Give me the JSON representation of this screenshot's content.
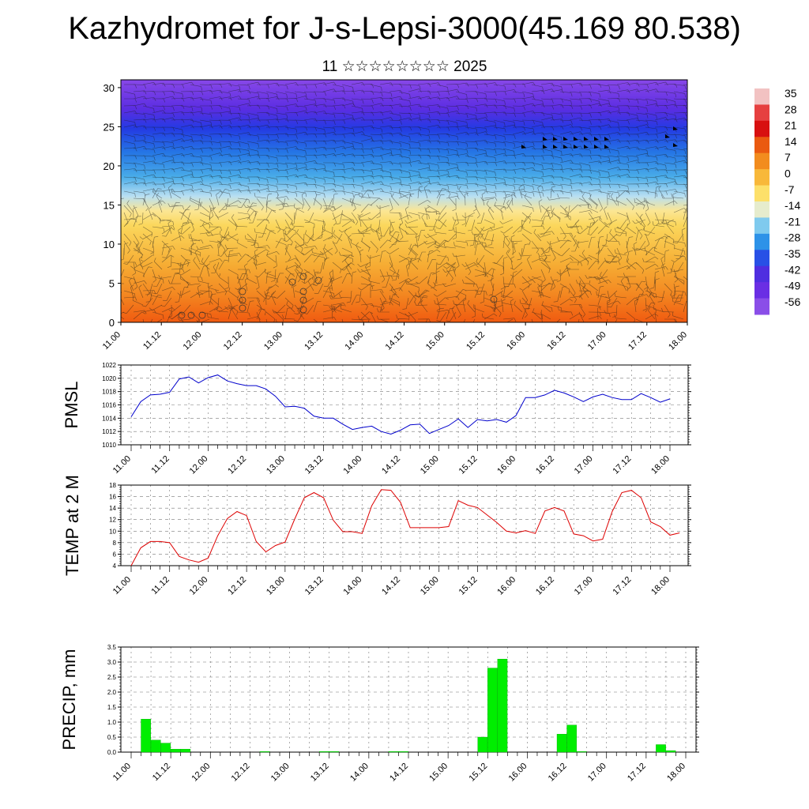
{
  "title": "Kazhydromet for J-s-Lepsi-3000(45.169 80.538)",
  "subtitle": "11 ☆☆☆☆☆☆☆☆ 2025",
  "colors": {
    "pmsl_line": "#0000cc",
    "temp_line": "#dd0000",
    "precip_bar": "#00ee00"
  },
  "chart_data": [
    {
      "type": "heatmap",
      "name": "cross-section",
      "x_tick_labels": [
        "11.00",
        "11.12",
        "12.00",
        "12.12",
        "13.00",
        "13.12",
        "14.00",
        "14.12",
        "15.00",
        "15.12",
        "16.00",
        "16.12",
        "17.00",
        "17.12",
        "18.00"
      ],
      "ylim": [
        0,
        31
      ],
      "y_ticks": [
        0,
        5,
        10,
        15,
        20,
        25,
        30
      ],
      "colorbar": {
        "labels": [
          "35",
          "28",
          "21",
          "14",
          "7",
          "0",
          "-7",
          "-14",
          "-21",
          "-28",
          "-35",
          "-42",
          "-49",
          "-56"
        ],
        "colors": [
          "#f2c2c2",
          "#e64040",
          "#d81010",
          "#ea5a10",
          "#f28c1e",
          "#f8b83a",
          "#fde06a",
          "#e6eccd",
          "#7fcaee",
          "#2d92e8",
          "#2850e6",
          "#4f2ee0",
          "#6a2ee4",
          "#8a4ee8"
        ]
      }
    },
    {
      "type": "line",
      "ylabel": "PMSL",
      "ylim": [
        1010,
        1022
      ],
      "y_ticks": [
        1010,
        1012,
        1014,
        1016,
        1018,
        1020,
        1022
      ],
      "x_tick_labels": [
        "11.00",
        "11.12",
        "12.00",
        "12.12",
        "13.00",
        "13.12",
        "14.00",
        "14.12",
        "15.00",
        "15.12",
        "16.00",
        "16.12",
        "17.00",
        "17.12",
        "18.00"
      ],
      "series": [
        {
          "values": [
            1014.2,
            1016.5,
            1017.5,
            1017.6,
            1017.9,
            1019.9,
            1020.2,
            1019.3,
            1020.1,
            1020.5,
            1019.6,
            1019.2,
            1018.9,
            1018.9,
            1018.4,
            1017.3,
            1015.7,
            1015.8,
            1015.5,
            1014.3,
            1014.0,
            1014.0,
            1013.1,
            1012.3,
            1012.6,
            1012.8,
            1012.0,
            1011.6,
            1012.2,
            1013.0,
            1013.1,
            1011.7,
            1012.3,
            1012.9,
            1013.9,
            1012.6,
            1013.8,
            1013.6,
            1013.8,
            1013.4,
            1014.4,
            1017.1,
            1017.1,
            1017.5,
            1018.2,
            1017.8,
            1017.2,
            1016.5,
            1017.2,
            1017.6,
            1017.1,
            1016.8,
            1016.8,
            1017.7,
            1017.1,
            1016.4,
            1016.9
          ]
        }
      ]
    },
    {
      "type": "line",
      "ylabel": "TEMP at 2 M",
      "ylim": [
        4,
        18
      ],
      "y_ticks": [
        4,
        6,
        8,
        10,
        12,
        14,
        16,
        18
      ],
      "x_tick_labels": [
        "11.00",
        "11.12",
        "12.00",
        "12.12",
        "13.00",
        "13.12",
        "14.00",
        "14.12",
        "15.00",
        "15.12",
        "16.00",
        "16.12",
        "17.00",
        "17.12",
        "18.00"
      ],
      "series": [
        {
          "values": [
            4.0,
            7.1,
            8.2,
            8.2,
            8.0,
            5.6,
            5.0,
            4.6,
            5.3,
            9.2,
            12.2,
            13.4,
            12.7,
            8.2,
            6.4,
            7.5,
            8.1,
            12.1,
            15.8,
            16.7,
            15.8,
            11.9,
            9.9,
            9.9,
            9.6,
            14.4,
            17.2,
            17.1,
            15.0,
            10.6,
            10.6,
            10.6,
            10.6,
            10.8,
            15.3,
            14.5,
            14.1,
            12.8,
            11.5,
            10.0,
            9.7,
            10.1,
            9.6,
            13.5,
            14.1,
            13.5,
            9.5,
            9.2,
            8.3,
            8.6,
            13.4,
            16.7,
            17.1,
            15.8,
            11.6,
            10.8,
            9.3,
            9.7
          ]
        }
      ]
    },
    {
      "type": "bar",
      "ylabel": "PRECIP, mm",
      "ylim": [
        0,
        3.5
      ],
      "y_ticks": [
        "0.0",
        "0.5",
        "1.0",
        "1.5",
        "2.0",
        "2.5",
        "3.0",
        "3.5"
      ],
      "x_tick_labels": [
        "11.00",
        "11.12",
        "12.00",
        "12.12",
        "13.00",
        "13.12",
        "14.00",
        "14.12",
        "15.00",
        "15.12",
        "16.00",
        "16.12",
        "17.00",
        "17.12",
        "18.00"
      ],
      "values": [
        0,
        1.1,
        0.4,
        0.3,
        0.1,
        0.1,
        0,
        0,
        0,
        0,
        0,
        0,
        0,
        0.02,
        0,
        0,
        0,
        0,
        0,
        0.02,
        0.02,
        0,
        0,
        0,
        0,
        0,
        0.02,
        0.02,
        0,
        0,
        0,
        0,
        0,
        0,
        0,
        0.5,
        2.8,
        3.1,
        0,
        0,
        0,
        0,
        0,
        0.6,
        0.9,
        0.02,
        0,
        0,
        0,
        0,
        0,
        0,
        0,
        0.25,
        0.05,
        0,
        0,
        0
      ]
    }
  ]
}
